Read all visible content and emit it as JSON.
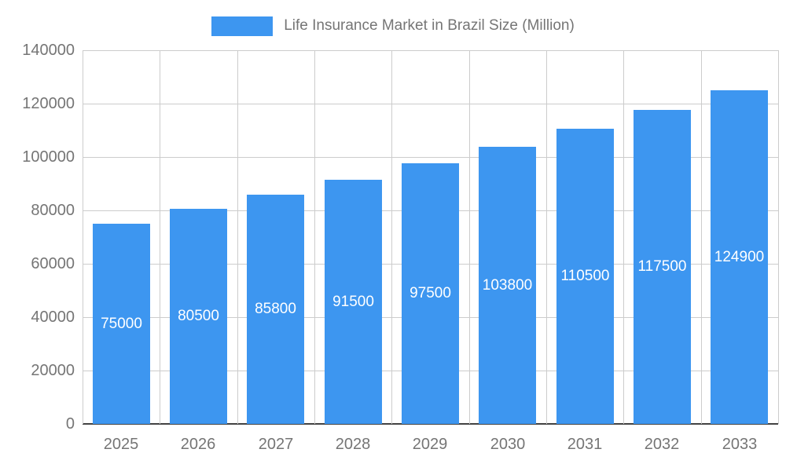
{
  "chart_data": {
    "type": "bar",
    "title": "Life Insurance Market in Brazil Size (Million)",
    "categories": [
      "2025",
      "2026",
      "2027",
      "2028",
      "2029",
      "2030",
      "2031",
      "2032",
      "2033"
    ],
    "values": [
      75000,
      80500,
      85800,
      91500,
      97500,
      103800,
      110500,
      117500,
      124900
    ],
    "xlabel": "",
    "ylabel": "",
    "ylim": [
      0,
      140000
    ],
    "ytick_step": 20000,
    "grid": true,
    "legend_position": "top",
    "colors": {
      "bar": "#3d96f0",
      "bar_label": "#ffffff",
      "gridline": "#cccccc",
      "baseline": "#424242",
      "axis_text": "#757575",
      "legend_text": "#757575",
      "background": "#ffffff"
    }
  }
}
